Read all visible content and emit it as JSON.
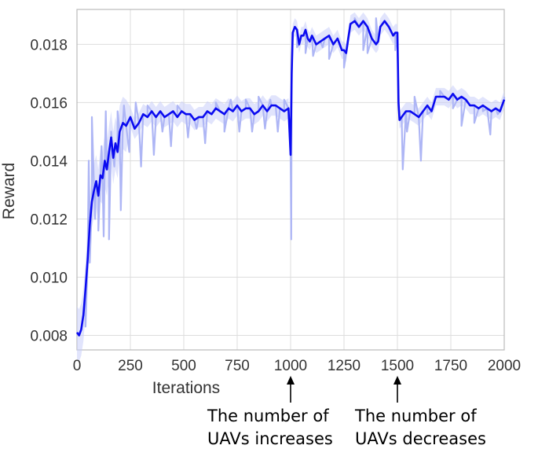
{
  "chart_data": {
    "type": "line",
    "xlabel": "Iterations",
    "ylabel": "Reward",
    "xlim": [
      0,
      2000
    ],
    "ylim": [
      0.0075,
      0.0192
    ],
    "grid": true,
    "x_ticks": [
      0,
      250,
      500,
      750,
      1000,
      1250,
      1500,
      1750,
      2000
    ],
    "y_ticks": [
      0.008,
      0.01,
      0.012,
      0.014,
      0.016,
      0.018
    ],
    "y_tick_labels": [
      "0.008",
      "0.010",
      "0.012",
      "0.014",
      "0.016",
      "0.018"
    ],
    "colors": {
      "line": "#0b0bf0",
      "band": "#c8cdfa",
      "raw": "#aeb6f5",
      "grid": "#dddddd",
      "frame": "#bbbbbb"
    },
    "series": [
      {
        "values_smoothed": {
          "x": [
            0,
            10,
            20,
            30,
            40,
            50,
            60,
            70,
            80,
            90,
            100,
            110,
            120,
            130,
            140,
            150,
            160,
            170,
            180,
            190,
            200,
            215,
            230,
            250,
            270,
            290,
            310,
            330,
            350,
            370,
            390,
            410,
            430,
            450,
            470,
            490,
            510,
            530,
            550,
            570,
            590,
            610,
            630,
            650,
            670,
            690,
            710,
            730,
            750,
            770,
            790,
            810,
            830,
            850,
            870,
            890,
            910,
            930,
            950,
            970,
            990,
            1000,
            1005,
            1010,
            1020,
            1030,
            1040,
            1050,
            1060,
            1070,
            1080,
            1090,
            1100,
            1120,
            1140,
            1160,
            1180,
            1200,
            1220,
            1240,
            1250,
            1260,
            1270,
            1280,
            1300,
            1320,
            1340,
            1360,
            1380,
            1400,
            1410,
            1420,
            1440,
            1460,
            1480,
            1490,
            1500,
            1505,
            1510,
            1520,
            1540,
            1560,
            1580,
            1600,
            1620,
            1640,
            1660,
            1680,
            1700,
            1720,
            1740,
            1760,
            1780,
            1800,
            1820,
            1840,
            1860,
            1880,
            1900,
            1920,
            1940,
            1960,
            1980,
            2000
          ],
          "y": [
            0.0081,
            0.008,
            0.0082,
            0.0087,
            0.0096,
            0.0106,
            0.0118,
            0.0126,
            0.013,
            0.0133,
            0.0128,
            0.0135,
            0.0134,
            0.014,
            0.0137,
            0.0143,
            0.0148,
            0.0141,
            0.0146,
            0.0143,
            0.015,
            0.0153,
            0.0152,
            0.0155,
            0.0151,
            0.0153,
            0.0156,
            0.0155,
            0.0157,
            0.0155,
            0.0157,
            0.0155,
            0.0156,
            0.0157,
            0.0155,
            0.0157,
            0.0156,
            0.0156,
            0.0154,
            0.0155,
            0.0155,
            0.0157,
            0.0156,
            0.0158,
            0.0157,
            0.0156,
            0.0158,
            0.0157,
            0.0159,
            0.0157,
            0.0158,
            0.0158,
            0.0156,
            0.0157,
            0.0159,
            0.0157,
            0.0159,
            0.0159,
            0.0158,
            0.0157,
            0.0158,
            0.0142,
            0.017,
            0.0184,
            0.0186,
            0.0185,
            0.018,
            0.0183,
            0.0183,
            0.0185,
            0.0182,
            0.0181,
            0.0183,
            0.018,
            0.0181,
            0.0182,
            0.0183,
            0.018,
            0.0182,
            0.0178,
            0.0178,
            0.0177,
            0.0182,
            0.0187,
            0.0188,
            0.0186,
            0.0188,
            0.0186,
            0.0182,
            0.018,
            0.0181,
            0.0186,
            0.0188,
            0.0186,
            0.0183,
            0.0184,
            0.0184,
            0.016,
            0.0154,
            0.0155,
            0.0157,
            0.0157,
            0.0156,
            0.0155,
            0.0157,
            0.0159,
            0.0157,
            0.0162,
            0.0162,
            0.0162,
            0.0161,
            0.0163,
            0.0161,
            0.0162,
            0.0161,
            0.0159,
            0.0159,
            0.0158,
            0.0159,
            0.0158,
            0.0157,
            0.0158,
            0.0157,
            0.0161
          ]
        },
        "raw_spikes": [
          [
            40,
            0.0083
          ],
          [
            55,
            0.014
          ],
          [
            60,
            0.0105
          ],
          [
            70,
            0.0155
          ],
          [
            85,
            0.012
          ],
          [
            100,
            0.0116
          ],
          [
            115,
            0.0145
          ],
          [
            125,
            0.0114
          ],
          [
            135,
            0.0157
          ],
          [
            150,
            0.0113
          ],
          [
            160,
            0.015
          ],
          [
            175,
            0.0138
          ],
          [
            190,
            0.0157
          ],
          [
            205,
            0.0123
          ],
          [
            220,
            0.0159
          ],
          [
            245,
            0.0143
          ],
          [
            275,
            0.016
          ],
          [
            300,
            0.0138
          ],
          [
            330,
            0.0159
          ],
          [
            360,
            0.0142
          ],
          [
            400,
            0.015
          ],
          [
            440,
            0.0145
          ],
          [
            470,
            0.0159
          ],
          [
            520,
            0.0148
          ],
          [
            560,
            0.0151
          ],
          [
            600,
            0.0146
          ],
          [
            650,
            0.016
          ],
          [
            690,
            0.015
          ],
          [
            720,
            0.0161
          ],
          [
            760,
            0.015
          ],
          [
            790,
            0.0161
          ],
          [
            820,
            0.015
          ],
          [
            850,
            0.0162
          ],
          [
            880,
            0.0151
          ],
          [
            905,
            0.0161
          ],
          [
            940,
            0.015
          ],
          [
            970,
            0.0161
          ],
          [
            1003,
            0.0113
          ],
          [
            1030,
            0.0179
          ],
          [
            1070,
            0.0177
          ],
          [
            1105,
            0.0176
          ],
          [
            1150,
            0.0179
          ],
          [
            1180,
            0.0175
          ],
          [
            1250,
            0.0172
          ],
          [
            1300,
            0.0189
          ],
          [
            1340,
            0.0178
          ],
          [
            1360,
            0.0177
          ],
          [
            1400,
            0.0189
          ],
          [
            1450,
            0.0187
          ],
          [
            1490,
            0.0178
          ],
          [
            1512,
            0.0154
          ],
          [
            1525,
            0.0137
          ],
          [
            1545,
            0.015
          ],
          [
            1580,
            0.0162
          ],
          [
            1610,
            0.014
          ],
          [
            1640,
            0.0156
          ],
          [
            1700,
            0.0164
          ],
          [
            1760,
            0.0158
          ],
          [
            1800,
            0.0152
          ],
          [
            1860,
            0.0153
          ],
          [
            1900,
            0.0157
          ],
          [
            1935,
            0.0149
          ],
          [
            1970,
            0.0156
          ],
          [
            2000,
            0.0162
          ]
        ]
      }
    ]
  },
  "annotations": {
    "increase_text": "The number of\nUAVs increases",
    "decrease_text": "The number of\nUAVs decreases",
    "increase_x": 1000,
    "decrease_x": 1500
  }
}
